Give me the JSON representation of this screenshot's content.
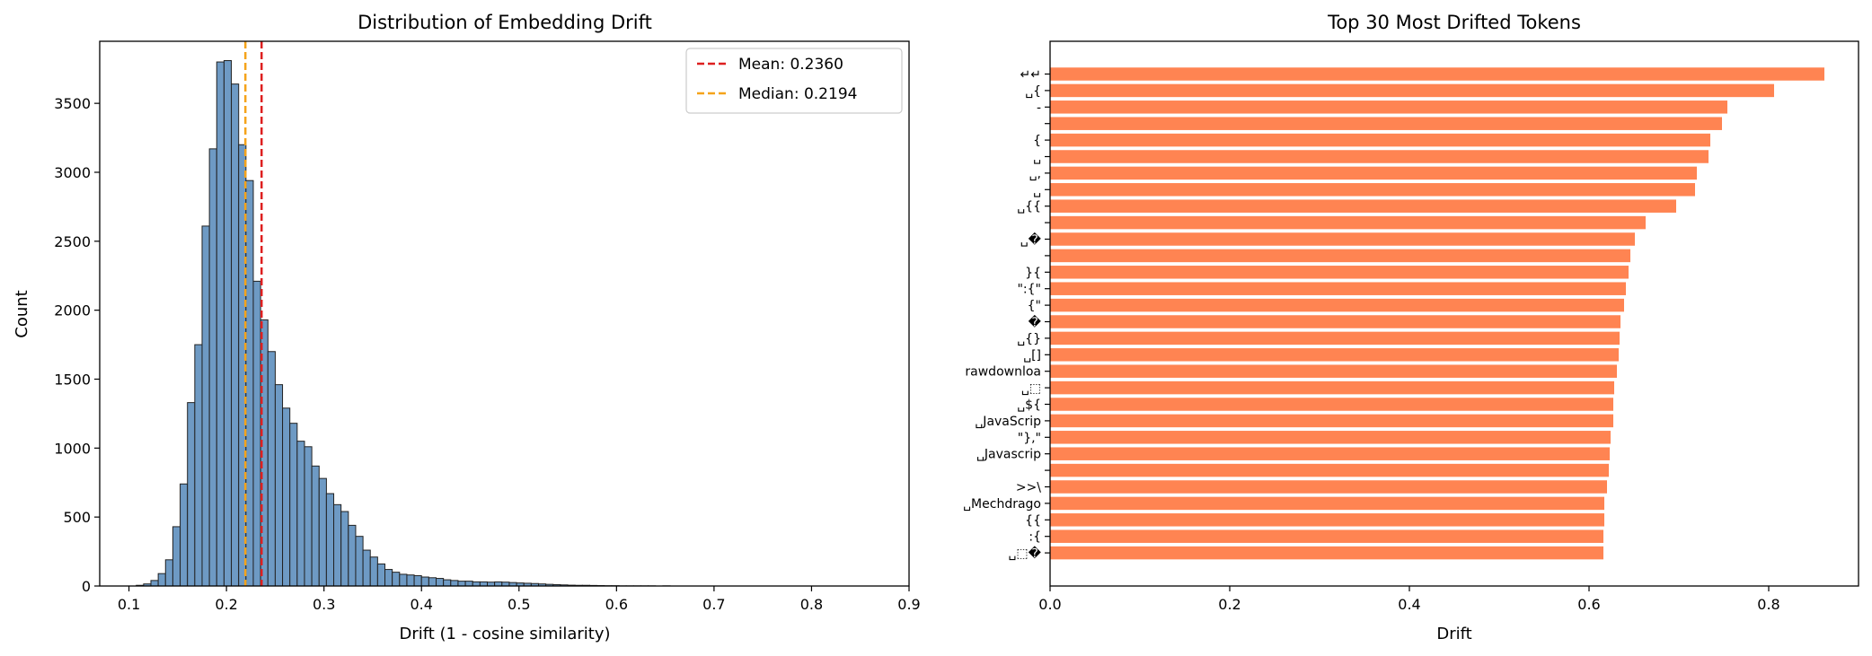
{
  "chart_data": [
    {
      "type": "histogram",
      "title": "Distribution of Embedding Drift",
      "xlabel": "Drift (1 - cosine similarity)",
      "ylabel": "Count",
      "xlim": [
        0.07,
        0.9
      ],
      "ylim": [
        0,
        3950
      ],
      "xticks": [
        0.1,
        0.2,
        0.3,
        0.4,
        0.5,
        0.6,
        0.7,
        0.8,
        0.9
      ],
      "xtick_labels": [
        "0.1",
        "0.2",
        "0.3",
        "0.4",
        "0.5",
        "0.6",
        "0.7",
        "0.8",
        "0.9"
      ],
      "yticks": [
        0,
        500,
        1000,
        1500,
        2000,
        2500,
        3000,
        3500
      ],
      "ytick_labels": [
        "0",
        "500",
        "1000",
        "1500",
        "2000",
        "2500",
        "3000",
        "3500"
      ],
      "bar_color": "#6e9ac4",
      "bar_edge_color": "#222222",
      "bin_start": 0.1,
      "bin_width": 0.0075,
      "counts": [
        0,
        5,
        15,
        40,
        90,
        190,
        430,
        740,
        1330,
        1750,
        2610,
        3170,
        3800,
        3810,
        3640,
        3200,
        2940,
        2210,
        1930,
        1700,
        1460,
        1290,
        1180,
        1050,
        1010,
        870,
        780,
        670,
        590,
        540,
        440,
        360,
        260,
        210,
        160,
        120,
        100,
        85,
        80,
        75,
        65,
        60,
        55,
        45,
        40,
        35,
        35,
        30,
        30,
        28,
        30,
        28,
        25,
        22,
        20,
        18,
        15,
        12,
        10,
        8,
        6,
        5,
        5,
        4,
        3,
        2,
        2,
        1,
        1,
        1,
        1,
        1,
        0,
        1,
        0,
        0,
        0,
        0,
        0,
        0,
        0,
        0,
        0,
        0,
        0,
        0,
        0,
        0,
        0,
        0,
        0,
        0,
        0,
        0,
        0,
        0,
        0,
        0,
        0,
        0
      ],
      "lines": [
        {
          "label": "Mean: 0.2360",
          "x": 0.236,
          "color": "#dd1f1f"
        },
        {
          "label": "Median: 0.2194",
          "x": 0.2194,
          "color": "#f5a31a"
        }
      ],
      "legend_position": "top-right"
    },
    {
      "type": "barh",
      "title": "Top 30 Most Drifted Tokens",
      "xlabel": "Drift",
      "xlim": [
        0,
        0.9
      ],
      "xticks": [
        0.0,
        0.2,
        0.4,
        0.6,
        0.8
      ],
      "xtick_labels": [
        "0.0",
        "0.2",
        "0.4",
        "0.6",
        "0.8"
      ],
      "bar_color": "#ff8452",
      "categories": [
        "↵↵",
        "␣{",
        "-",
        "",
        "{",
        "␣",
        "␣,",
        "␣",
        "␣{{",
        "",
        "␣�",
        "",
        "}{",
        "\":{\"",
        "{\"",
        "�",
        "␣{}",
        "␣[]",
        "rawdownloa",
        "␣⬚",
        "␣${",
        "␣JavaScrip",
        "\"},\"",
        "␣Javascrip",
        "",
        ">>\\",
        "␣Mechdrago",
        "{{",
        ":{",
        "␣⬚�"
      ],
      "values": [
        0.862,
        0.806,
        0.754,
        0.748,
        0.735,
        0.733,
        0.72,
        0.718,
        0.697,
        0.663,
        0.651,
        0.646,
        0.644,
        0.641,
        0.639,
        0.635,
        0.634,
        0.633,
        0.631,
        0.628,
        0.627,
        0.627,
        0.624,
        0.623,
        0.622,
        0.62,
        0.617,
        0.617,
        0.616,
        0.616
      ]
    }
  ]
}
